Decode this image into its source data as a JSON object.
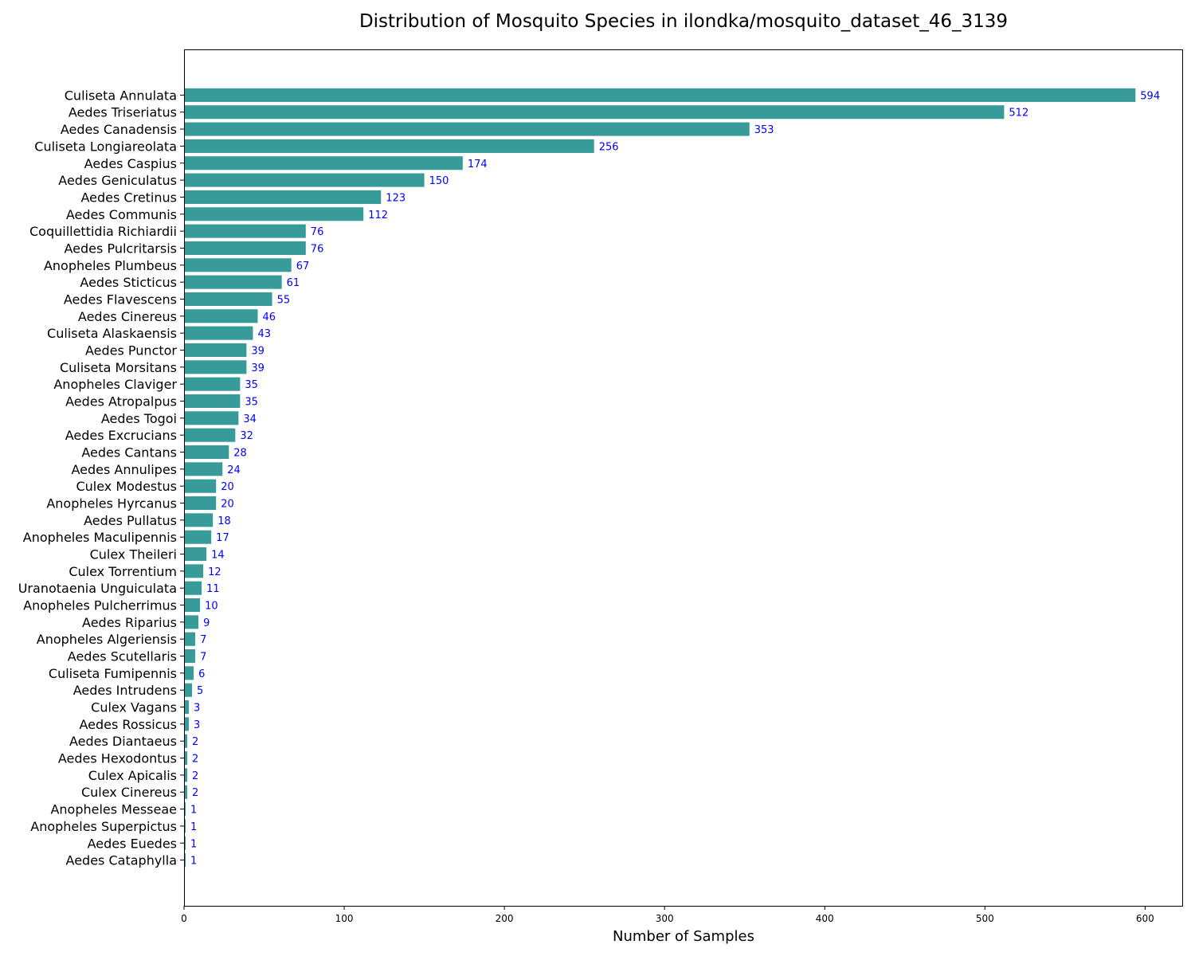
{
  "chart_data": {
    "type": "bar",
    "orientation": "horizontal",
    "title": "Distribution of Mosquito Species in ilondka/mosquito_dataset_46_3139",
    "xlabel": "Number of Samples",
    "ylabel": "",
    "xlim": [
      0,
      623.7
    ],
    "xticks": [
      0,
      100,
      200,
      300,
      400,
      500,
      600
    ],
    "grid": false,
    "bar_color": "#369b99",
    "value_label_color": "#0000ff",
    "categories": [
      "Culiseta Annulata",
      "Aedes Triseriatus",
      "Aedes Canadensis",
      "Culiseta Longiareolata",
      "Aedes Caspius",
      "Aedes Geniculatus",
      "Aedes Cretinus",
      "Aedes Communis",
      "Coquillettidia Richiardii",
      "Aedes Pulcritarsis",
      "Anopheles Plumbeus",
      "Aedes Sticticus",
      "Aedes Flavescens",
      "Aedes Cinereus",
      "Culiseta Alaskaensis",
      "Aedes Punctor",
      "Culiseta Morsitans",
      "Anopheles Claviger",
      "Aedes Atropalpus",
      "Aedes Togoi",
      "Aedes Excrucians",
      "Aedes Cantans",
      "Aedes Annulipes",
      "Culex Modestus",
      "Anopheles Hyrcanus",
      "Aedes Pullatus",
      "Anopheles Maculipennis",
      "Culex Theileri",
      "Culex Torrentium",
      "Uranotaenia Unguiculata",
      "Anopheles Pulcherrimus",
      "Aedes Riparius",
      "Anopheles Algeriensis",
      "Aedes Scutellaris",
      "Culiseta Fumipennis",
      "Aedes Intrudens",
      "Culex Vagans",
      "Aedes Rossicus",
      "Aedes Diantaeus",
      "Aedes Hexodontus",
      "Culex Apicalis",
      "Culex Cinereus",
      "Anopheles Messeae",
      "Anopheles Superpictus",
      "Aedes Euedes",
      "Aedes Cataphylla"
    ],
    "values": [
      594,
      512,
      353,
      256,
      174,
      150,
      123,
      112,
      76,
      76,
      67,
      61,
      55,
      46,
      43,
      39,
      39,
      35,
      35,
      34,
      32,
      28,
      24,
      20,
      20,
      18,
      17,
      14,
      12,
      11,
      10,
      9,
      7,
      7,
      6,
      5,
      3,
      3,
      2,
      2,
      2,
      2,
      1,
      1,
      1,
      1
    ]
  }
}
